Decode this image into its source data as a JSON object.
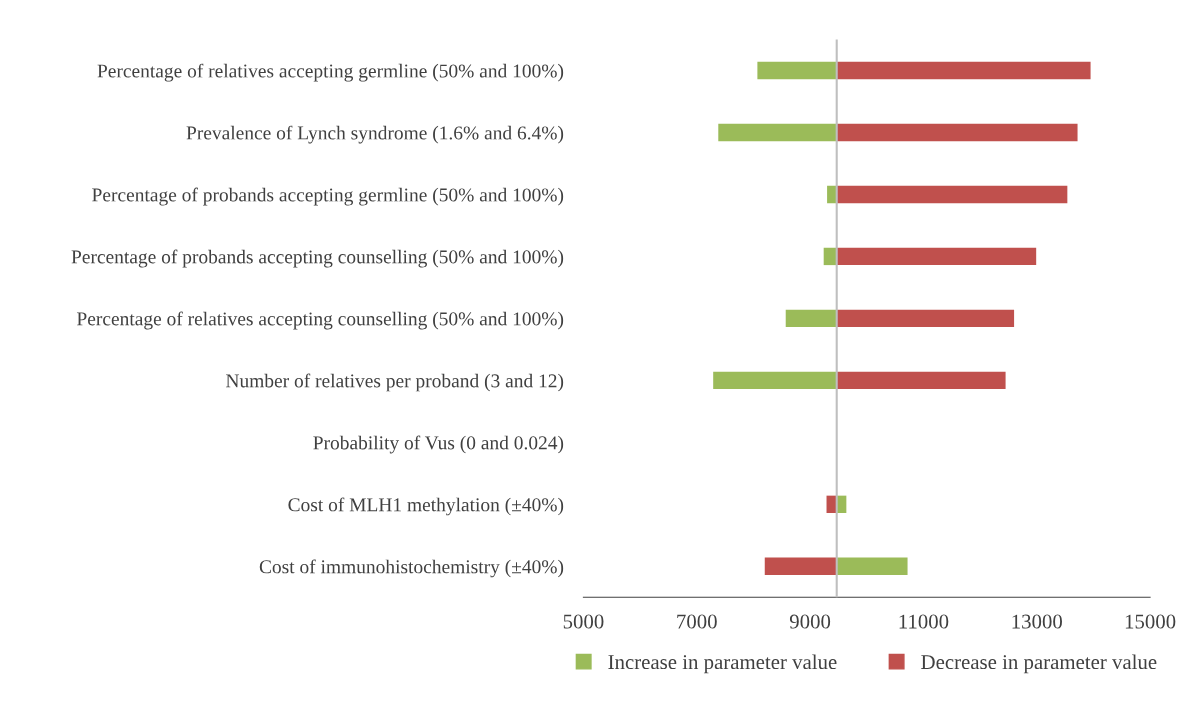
{
  "chart_data": {
    "type": "bar",
    "orientation": "horizontal",
    "categories": [
      "Percentage of relatives accepting germline (50% and 100%)",
      "Prevalence of Lynch syndrome (1.6% and 6.4%)",
      "Percentage of probands accepting germline (50% and 100%)",
      "Percentage of probands accepting counselling (50% and 100%)",
      "Percentage of relatives accepting counselling (50% and 100%)",
      "Number of relatives per proband (3 and 12)",
      "Probability of Vus (0 and 0.024)",
      "Cost of MLH1 methylation (±40%)",
      "Cost of immunohistochemistry (±40%)"
    ],
    "series": [
      {
        "name": "Increase in parameter value",
        "color": "#9bbb59",
        "base": [
          9470,
          9470,
          9470,
          9470,
          9470,
          9470,
          null,
          9470,
          9470
        ],
        "values": [
          -1400,
          -2090,
          -170,
          -230,
          -900,
          -2180,
          null,
          170,
          1250
        ]
      },
      {
        "name": "Decrease in parameter value",
        "color": "#c0504d",
        "base": [
          9470,
          9470,
          9470,
          9470,
          9470,
          9470,
          null,
          9470,
          9470
        ],
        "values": [
          4480,
          4250,
          4070,
          3520,
          3130,
          2980,
          null,
          -180,
          -1270
        ]
      }
    ],
    "xlim": [
      5000,
      15000
    ],
    "xticks": [
      5000,
      7000,
      9000,
      11000,
      13000,
      15000
    ],
    "ref_lines": [
      {
        "axis": "x",
        "value": 9470,
        "color": "#bfbfbf"
      }
    ],
    "grid": false,
    "legend": "bottom"
  }
}
